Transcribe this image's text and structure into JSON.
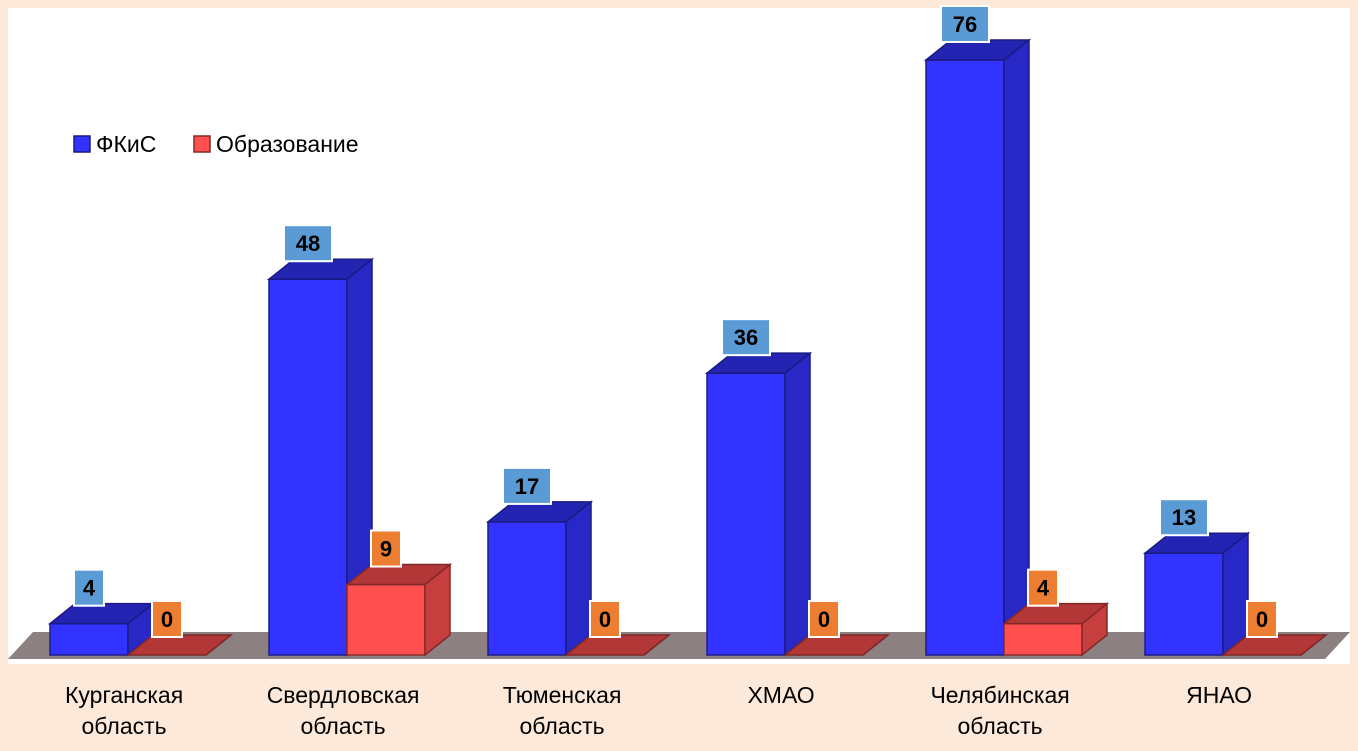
{
  "chart_data": {
    "type": "bar",
    "title": "",
    "xlabel": "",
    "ylabel": "",
    "categories": [
      [
        "Курганская",
        "область"
      ],
      [
        "Свердловская",
        "область"
      ],
      [
        "Тюменская",
        "область"
      ],
      [
        "ХМАО"
      ],
      [
        "Челябинская",
        "область"
      ],
      [
        "ЯНАО"
      ]
    ],
    "series": [
      {
        "name": "ФКиС",
        "values": [
          4,
          48,
          17,
          36,
          76,
          13
        ],
        "color": "#3333FF",
        "label_bg": "#5B9BD5"
      },
      {
        "name": "Образование",
        "values": [
          0,
          9,
          0,
          0,
          4,
          0
        ],
        "color": "#FF4F4F",
        "label_bg": "#ED7D31"
      }
    ],
    "ylim": [
      0,
      76
    ],
    "grid": false,
    "legend": "top-left",
    "colors": {
      "background": "#FDE9D9",
      "plot_area": "#FFFFFF",
      "floor": "#8C8080"
    }
  }
}
